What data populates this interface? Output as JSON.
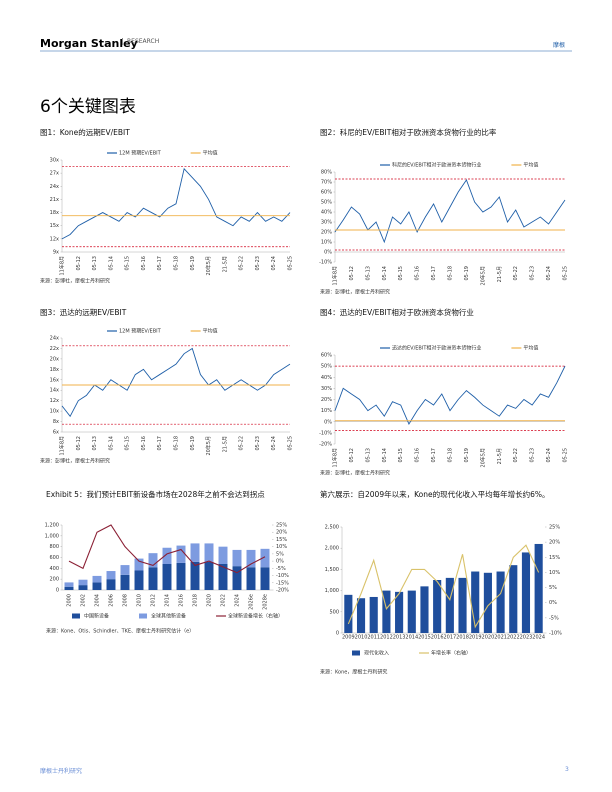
{
  "header": {
    "brand": "Morgan Stanley",
    "division": "RESEARCH",
    "tag": "摩根"
  },
  "title": "6个关键图表",
  "footer": {
    "left": "摩根士丹利研究",
    "page": "3"
  },
  "chart_data": [
    {
      "type": "line",
      "title": "图1：Kone的远期EV/EBIT",
      "note": "来源：彭博社，摩根士丹利研究",
      "categories": [
        "11年8月",
        null,
        "05-12",
        null,
        "05-13",
        null,
        "05-14",
        null,
        "05-15",
        null,
        "05-16",
        null,
        "05-17",
        null,
        "05-18",
        null,
        "05-19",
        null,
        "20年5月",
        null,
        "21-5月",
        null,
        "05-22",
        null,
        "05-23",
        null,
        "05-24",
        null,
        "05-25"
      ],
      "series": [
        {
          "name": "12M 预期EV/EBIT",
          "color": "#1f5fa8",
          "values": [
            12,
            13,
            15,
            16,
            17,
            18,
            17,
            16,
            18,
            17,
            19,
            18,
            17,
            19,
            20,
            28,
            26,
            24,
            21,
            17,
            16,
            15,
            17,
            16,
            18,
            16,
            17,
            16,
            18
          ]
        },
        {
          "name": "平均值",
          "color": "#f0b24a",
          "values": [
            17.3,
            17.3,
            17.3,
            17.3,
            17.3,
            17.3,
            17.3,
            17.3,
            17.3,
            17.3,
            17.3,
            17.3,
            17.3,
            17.3,
            17.3,
            17.3,
            17.3,
            17.3,
            17.3,
            17.3,
            17.3,
            17.3,
            17.3,
            17.3,
            17.3,
            17.3,
            17.3,
            17.3,
            17.3
          ]
        }
      ],
      "ref_lines": [
        28.5,
        10.2
      ],
      "ref_color": "#d0021b",
      "ylim": [
        9,
        30
      ],
      "yticks": [
        {
          "value": 9,
          "label": "9x"
        },
        {
          "value": 12,
          "label": "12x"
        },
        {
          "value": 15,
          "label": "15x"
        },
        {
          "value": 18,
          "label": "18x"
        },
        {
          "value": 21,
          "label": "21x"
        },
        {
          "value": 24,
          "label": "24x"
        },
        {
          "value": 27,
          "label": "27x"
        },
        {
          "value": 30,
          "label": "30x"
        }
      ]
    },
    {
      "type": "line",
      "title": "图2：科尼的EV/EBIT相对于欧洲资本货物行业的比率",
      "note": "来源：彭博社，摩根士丹利研究",
      "categories": [
        "11年8月",
        null,
        "05-12",
        null,
        "05-13",
        null,
        "05-14",
        null,
        "05-15",
        null,
        "05-16",
        null,
        "05-17",
        null,
        "05-18",
        null,
        "05-19",
        null,
        "20年5月",
        null,
        "21-5月",
        null,
        "05-22",
        null,
        "05-23",
        null,
        "05-24",
        null,
        "05-25"
      ],
      "series": [
        {
          "name": "科尼的EV/EBIT相对于欧洲资本货物行业",
          "color": "#1f5fa8",
          "values": [
            20,
            32,
            45,
            38,
            22,
            30,
            10,
            35,
            28,
            40,
            20,
            35,
            48,
            30,
            45,
            60,
            72,
            50,
            40,
            45,
            55,
            30,
            42,
            25,
            30,
            35,
            28,
            40,
            52
          ]
        },
        {
          "name": "平均值",
          "color": "#f0b24a",
          "values": [
            22,
            22,
            22,
            22,
            22,
            22,
            22,
            22,
            22,
            22,
            22,
            22,
            22,
            22,
            22,
            22,
            22,
            22,
            22,
            22,
            22,
            22,
            22,
            22,
            22,
            22,
            22,
            22,
            22
          ]
        }
      ],
      "ref_lines": [
        73,
        2
      ],
      "ref_color": "#d0021b",
      "ylim": [
        -10,
        80
      ],
      "yticks": [
        {
          "value": -10,
          "label": "-10%"
        },
        {
          "value": 0,
          "label": "0%"
        },
        {
          "value": 10,
          "label": "10%"
        },
        {
          "value": 20,
          "label": "20%"
        },
        {
          "value": 30,
          "label": "30%"
        },
        {
          "value": 40,
          "label": "40%"
        },
        {
          "value": 50,
          "label": "50%"
        },
        {
          "value": 60,
          "label": "60%"
        },
        {
          "value": 70,
          "label": "70%"
        },
        {
          "value": 80,
          "label": "80%"
        }
      ]
    },
    {
      "type": "line",
      "title": "图3：迅达的远期EV/EBIT",
      "note": "来源：彭博社，摩根士丹利研究",
      "categories": [
        "11年8月",
        null,
        "05-12",
        null,
        "05-13",
        null,
        "05-14",
        null,
        "05-15",
        null,
        "05-16",
        null,
        "05-17",
        null,
        "05-18",
        null,
        "05-19",
        null,
        "20年5月",
        null,
        "21-5月",
        null,
        "05-22",
        null,
        "05-23",
        null,
        "05-24",
        null,
        "05-25"
      ],
      "series": [
        {
          "name": "12M 预期EV/EBIT",
          "color": "#1f5fa8",
          "values": [
            11,
            9,
            12,
            13,
            15,
            14,
            16,
            15,
            14,
            17,
            18,
            16,
            17,
            18,
            19,
            21,
            22,
            17,
            15,
            16,
            14,
            15,
            16,
            15,
            14,
            15,
            17,
            18,
            19
          ]
        },
        {
          "name": "平均值",
          "color": "#f0b24a",
          "values": [
            15,
            15,
            15,
            15,
            15,
            15,
            15,
            15,
            15,
            15,
            15,
            15,
            15,
            15,
            15,
            15,
            15,
            15,
            15,
            15,
            15,
            15,
            15,
            15,
            15,
            15,
            15,
            15,
            15
          ]
        }
      ],
      "ref_lines": [
        22.5,
        7.5
      ],
      "ref_color": "#d0021b",
      "ylim": [
        6,
        24
      ],
      "yticks": [
        {
          "value": 6,
          "label": "6x"
        },
        {
          "value": 8,
          "label": "8x"
        },
        {
          "value": 10,
          "label": "10x"
        },
        {
          "value": 12,
          "label": "12x"
        },
        {
          "value": 14,
          "label": "14x"
        },
        {
          "value": 16,
          "label": "16x"
        },
        {
          "value": 18,
          "label": "18x"
        },
        {
          "value": 20,
          "label": "20x"
        },
        {
          "value": 22,
          "label": "22x"
        },
        {
          "value": 24,
          "label": "24x"
        }
      ]
    },
    {
      "type": "line",
      "title": "图4：迅达的EV/EBIT相对于欧洲资本货物行业",
      "note": "来源：彭博社，摩根士丹利研究",
      "categories": [
        "11年8月",
        null,
        "05-12",
        null,
        "05-13",
        null,
        "05-14",
        null,
        "05-15",
        null,
        "05-16",
        null,
        "05-17",
        null,
        "05-18",
        null,
        "05-19",
        null,
        "20年5月",
        null,
        "21-5月",
        null,
        "05-22",
        null,
        "05-23",
        null,
        "05-24",
        null,
        "05-25"
      ],
      "series": [
        {
          "name": "迅达的EV/EBIT相对于欧洲资本货物行业",
          "color": "#1f5fa8",
          "values": [
            10,
            30,
            25,
            20,
            10,
            15,
            5,
            18,
            15,
            -2,
            10,
            20,
            15,
            25,
            10,
            20,
            28,
            22,
            15,
            10,
            5,
            15,
            12,
            20,
            15,
            25,
            22,
            35,
            50
          ]
        },
        {
          "name": "平均值",
          "color": "#f0b24a",
          "values": [
            1,
            1,
            1,
            1,
            1,
            1,
            1,
            1,
            1,
            1,
            1,
            1,
            1,
            1,
            1,
            1,
            1,
            1,
            1,
            1,
            1,
            1,
            1,
            1,
            1,
            1,
            1,
            1,
            1
          ]
        }
      ],
      "ref_lines": [
        50,
        -8
      ],
      "ref_color": "#d0021b",
      "ylim": [
        -20,
        60
      ],
      "yticks": [
        {
          "value": -20,
          "label": "-20%"
        },
        {
          "value": -10,
          "label": "-10%"
        },
        {
          "value": 0,
          "label": "0%"
        },
        {
          "value": 10,
          "label": "10%"
        },
        {
          "value": 20,
          "label": "20%"
        },
        {
          "value": 30,
          "label": "30%"
        },
        {
          "value": 40,
          "label": "40%"
        },
        {
          "value": 50,
          "label": "50%"
        },
        {
          "value": 60,
          "label": "60%"
        }
      ]
    },
    {
      "type": "bar",
      "title": "Exhibit 5：我们预计EBIT新设备市场在2028年之前不会达到拐点",
      "note": "来源：Kone、Otis、Schindler、TKE、摩根士丹利研究估计（e）",
      "categories": [
        "2000",
        "2002",
        "2004",
        "2006",
        "2008",
        "2010",
        "2012",
        "2014",
        "2016",
        "2018",
        "2020",
        "2022",
        "2024",
        "2026e",
        "2028e"
      ],
      "series": [
        {
          "name": "中国新设备",
          "color": "#1f4e9c",
          "values": [
            60,
            90,
            140,
            200,
            280,
            360,
            420,
            480,
            500,
            520,
            520,
            480,
            440,
            420,
            420
          ]
        },
        {
          "name": "全球其他新设备",
          "color": "#7d9be0",
          "values": [
            80,
            100,
            120,
            150,
            180,
            220,
            260,
            300,
            320,
            340,
            340,
            320,
            300,
            320,
            340
          ]
        },
        {
          "name": "全球新设备增长（右轴）",
          "color": "#8b2035",
          "type": "line",
          "axis": "y2",
          "values": [
            0,
            -5,
            20,
            25,
            10,
            0,
            -3,
            5,
            8,
            -3,
            0,
            -4,
            -8,
            -2,
            3
          ]
        }
      ],
      "ylim": [
        0,
        1200
      ],
      "yticks": [
        0,
        200,
        400,
        600,
        800,
        {
          "value": 1000,
          "label": "1,000"
        },
        {
          "value": 1200,
          "label": "1,200"
        }
      ],
      "y2lim": [
        -20,
        25
      ],
      "y2ticks": [
        {
          "value": -20,
          "label": "-20%"
        },
        {
          "value": -15,
          "label": "-15%"
        },
        {
          "value": -10,
          "label": "-10%"
        },
        {
          "value": -5,
          "label": "-5%"
        },
        {
          "value": 0,
          "label": "0%"
        },
        {
          "value": 5,
          "label": "5%"
        },
        {
          "value": 10,
          "label": "10%"
        },
        {
          "value": 15,
          "label": "15%"
        },
        {
          "value": 20,
          "label": "20%"
        },
        {
          "value": 25,
          "label": "25%"
        }
      ]
    },
    {
      "type": "bar",
      "title": "第六展示：自2009年以来，Kone的现代化收入平均每年增长约6%。",
      "note": "来源：Kone，摩根士丹利研究",
      "categories": [
        "2009",
        "2010",
        "2011",
        "2012",
        "2013",
        "2014",
        "2015",
        "2016",
        "2017",
        "2018",
        "2019",
        "2020",
        "2021",
        "2022",
        "2023",
        "2024"
      ],
      "series": [
        {
          "name": "现代化收入",
          "color": "#1f4e9c",
          "values": [
            900,
            820,
            850,
            1000,
            970,
            1000,
            1100,
            1250,
            1300,
            1300,
            1450,
            1420,
            1450,
            1600,
            1900,
            2100
          ]
        },
        {
          "name": "年增长率（右轴）",
          "color": "#d9c26a",
          "type": "line",
          "axis": "y2",
          "values": [
            -7,
            3,
            14,
            -2,
            3,
            11,
            11,
            7,
            1,
            16,
            -8,
            -1,
            3,
            15,
            19,
            10
          ]
        }
      ],
      "ylim": [
        0,
        2500
      ],
      "yticks": [
        0,
        500,
        {
          "value": 1000,
          "label": "1,000"
        },
        {
          "value": 1500,
          "label": "1,500"
        },
        {
          "value": 2000,
          "label": "2,000"
        },
        {
          "value": 2500,
          "label": "2,500"
        }
      ],
      "y2lim": [
        -10,
        25
      ],
      "y2ticks": [
        {
          "value": -10,
          "label": "-10%"
        },
        {
          "value": -5,
          "label": "-5%"
        },
        {
          "value": 0,
          "label": "0%"
        },
        {
          "value": 5,
          "label": "5%"
        },
        {
          "value": 10,
          "label": "10%"
        },
        {
          "value": 15,
          "label": "15%"
        },
        {
          "value": 20,
          "label": "20%"
        },
        {
          "value": 25,
          "label": "25%"
        }
      ]
    }
  ]
}
